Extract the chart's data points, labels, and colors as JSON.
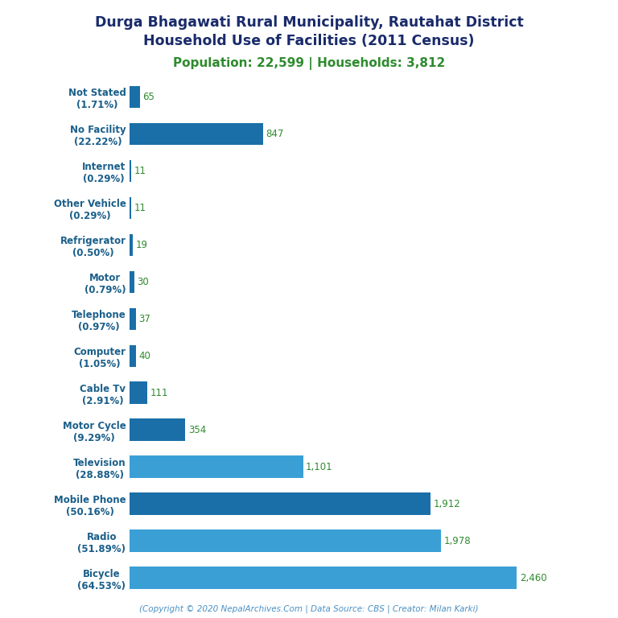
{
  "title_line1": "Durga Bhagawati Rural Municipality, Rautahat District",
  "title_line2": "Household Use of Facilities (2011 Census)",
  "subtitle": "Population: 22,599 | Households: 3,812",
  "footer": "(Copyright © 2020 NepalArchives.Com | Data Source: CBS | Creator: Milan Karki)",
  "categories": [
    "Bicycle\n(64.53%)",
    "Radio\n(51.89%)",
    "Mobile Phone\n(50.16%)",
    "Television\n(28.88%)",
    "Motor Cycle\n(9.29%)",
    "Cable Tv\n(2.91%)",
    "Computer\n(1.05%)",
    "Telephone\n(0.97%)",
    "Motor\n(0.79%)",
    "Refrigerator\n(0.50%)",
    "Other Vehicle\n(0.29%)",
    "Internet\n(0.29%)",
    "No Facility\n(22.22%)",
    "Not Stated\n(1.71%)"
  ],
  "values": [
    2460,
    1978,
    1912,
    1101,
    354,
    111,
    40,
    37,
    30,
    19,
    11,
    11,
    847,
    65
  ],
  "value_labels": [
    "2,460",
    "1,978",
    "1,912",
    "1,101",
    "354",
    "111",
    "40",
    "37",
    "30",
    "19",
    "11",
    "11",
    "847",
    "65"
  ],
  "bar_colors": [
    "#3a9fd5",
    "#3a9fd5",
    "#1a6fa8",
    "#3a9fd5",
    "#1a6fa8",
    "#1a6fa8",
    "#1a6fa8",
    "#1a6fa8",
    "#1a6fa8",
    "#1a6fa8",
    "#1a6fa8",
    "#1a6fa8",
    "#1a6fa8",
    "#1a6fa8"
  ],
  "title_color": "#1a2b6b",
  "subtitle_color": "#2e8b2e",
  "footer_color": "#4a90c4",
  "label_color": "#2e8b2e",
  "yticklabel_color": "#1a5f8a",
  "background_color": "#ffffff",
  "xlim": [
    0,
    2750
  ]
}
